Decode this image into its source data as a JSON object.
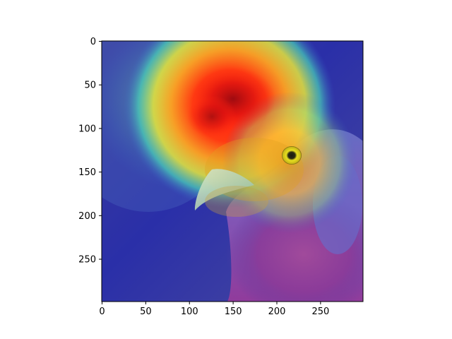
{
  "chart_data": {
    "type": "heatmap",
    "title": "",
    "xlabel": "",
    "ylabel": "",
    "x_ticks": [
      0,
      50,
      100,
      150,
      200,
      250
    ],
    "y_ticks": [
      0,
      50,
      100,
      150,
      200,
      250
    ],
    "xlim": [
      0,
      299
    ],
    "ylim": [
      299,
      0
    ],
    "image_extent": [
      0,
      299,
      0,
      299
    ],
    "grid": false,
    "colormap": "jet",
    "overlay_alpha": 0.5,
    "underlying_image": "rooster-head-photo",
    "activation_peaks": [
      {
        "x": 150,
        "y": 95,
        "intensity": 1.0
      },
      {
        "x": 130,
        "y": 70,
        "intensity": 0.95
      },
      {
        "x": 200,
        "y": 140,
        "intensity": 0.75
      },
      {
        "x": 220,
        "y": 185,
        "intensity": 0.55
      },
      {
        "x": 175,
        "y": 30,
        "intensity": 0.5
      }
    ]
  },
  "colors": {
    "axis": "#000000",
    "background": "#ffffff",
    "low": "#3a2f9a",
    "high": "#e01010"
  }
}
